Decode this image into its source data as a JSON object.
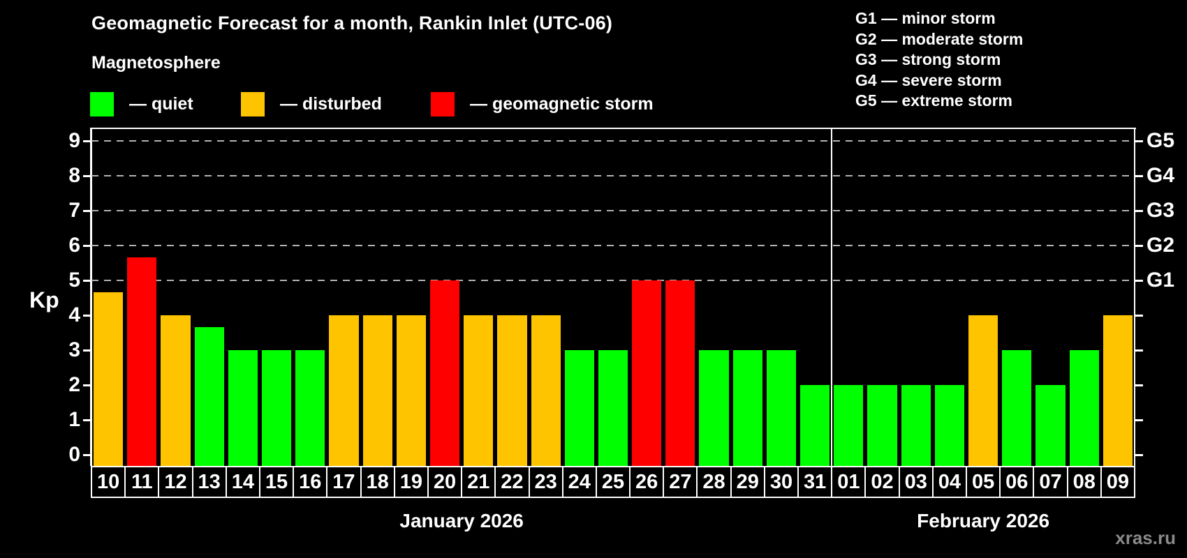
{
  "title": "Geomagnetic Forecast for a month, Rankin Inlet (UTC-06)",
  "subtitle": "Magnetosphere",
  "legend": {
    "quiet_label": "— quiet",
    "disturbed_label": "— disturbed",
    "storm_label": "— geomagnetic storm"
  },
  "g_legend": [
    "G1 — minor storm",
    "G2 — moderate storm",
    "G3 — strong storm",
    "G4 — severe storm",
    "G5 — extreme storm"
  ],
  "axis": {
    "y_label": "Kp",
    "y_ticks": [
      "0",
      "1",
      "2",
      "3",
      "4",
      "5",
      "6",
      "7",
      "8",
      "9"
    ],
    "g_ticks": [
      {
        "kp": 5,
        "label": "G1"
      },
      {
        "kp": 6,
        "label": "G2"
      },
      {
        "kp": 7,
        "label": "G3"
      },
      {
        "kp": 8,
        "label": "G4"
      },
      {
        "kp": 9,
        "label": "G5"
      }
    ]
  },
  "months": [
    {
      "label": "January 2026",
      "num_days": 22
    },
    {
      "label": "February 2026",
      "num_days": 9
    }
  ],
  "watermark": "xras.ru",
  "colors": {
    "background": "#000000",
    "grid": "#b3b3b3",
    "axis": "#ffffff",
    "status_colors": {
      "quiet": "#00ff00",
      "disturbed": "#ffc400",
      "storm": "#ff0000"
    }
  },
  "chart_data": {
    "type": "bar",
    "title": "Geomagnetic Forecast for a month, Rankin Inlet (UTC-06)",
    "xlabel": "",
    "ylabel": "Kp",
    "ylim": [
      0,
      9.4
    ],
    "grid_kp": [
      5,
      6,
      7,
      8,
      9
    ],
    "legend_position": "top",
    "days": [
      {
        "label": "10",
        "value": 4.67,
        "status": "disturbed"
      },
      {
        "label": "11",
        "value": 5.67,
        "status": "storm"
      },
      {
        "label": "12",
        "value": 4,
        "status": "disturbed"
      },
      {
        "label": "13",
        "value": 3.67,
        "status": "quiet"
      },
      {
        "label": "14",
        "value": 3,
        "status": "quiet"
      },
      {
        "label": "15",
        "value": 3,
        "status": "quiet"
      },
      {
        "label": "16",
        "value": 3,
        "status": "quiet"
      },
      {
        "label": "17",
        "value": 4,
        "status": "disturbed"
      },
      {
        "label": "18",
        "value": 4,
        "status": "disturbed"
      },
      {
        "label": "19",
        "value": 4,
        "status": "disturbed"
      },
      {
        "label": "20",
        "value": 5,
        "status": "storm"
      },
      {
        "label": "21",
        "value": 4,
        "status": "disturbed"
      },
      {
        "label": "22",
        "value": 4,
        "status": "disturbed"
      },
      {
        "label": "23",
        "value": 4,
        "status": "disturbed"
      },
      {
        "label": "24",
        "value": 3,
        "status": "quiet"
      },
      {
        "label": "25",
        "value": 3,
        "status": "quiet"
      },
      {
        "label": "26",
        "value": 5,
        "status": "storm"
      },
      {
        "label": "27",
        "value": 5,
        "status": "storm"
      },
      {
        "label": "28",
        "value": 3,
        "status": "quiet"
      },
      {
        "label": "29",
        "value": 3,
        "status": "quiet"
      },
      {
        "label": "30",
        "value": 3,
        "status": "quiet"
      },
      {
        "label": "31",
        "value": 2,
        "status": "quiet"
      },
      {
        "label": "01",
        "value": 2,
        "status": "quiet"
      },
      {
        "label": "02",
        "value": 2,
        "status": "quiet"
      },
      {
        "label": "03",
        "value": 2,
        "status": "quiet"
      },
      {
        "label": "04",
        "value": 2,
        "status": "quiet"
      },
      {
        "label": "05",
        "value": 4,
        "status": "disturbed"
      },
      {
        "label": "06",
        "value": 3,
        "status": "quiet"
      },
      {
        "label": "07",
        "value": 2,
        "status": "quiet"
      },
      {
        "label": "08",
        "value": 3,
        "status": "quiet"
      },
      {
        "label": "09",
        "value": 4,
        "status": "disturbed"
      }
    ]
  }
}
